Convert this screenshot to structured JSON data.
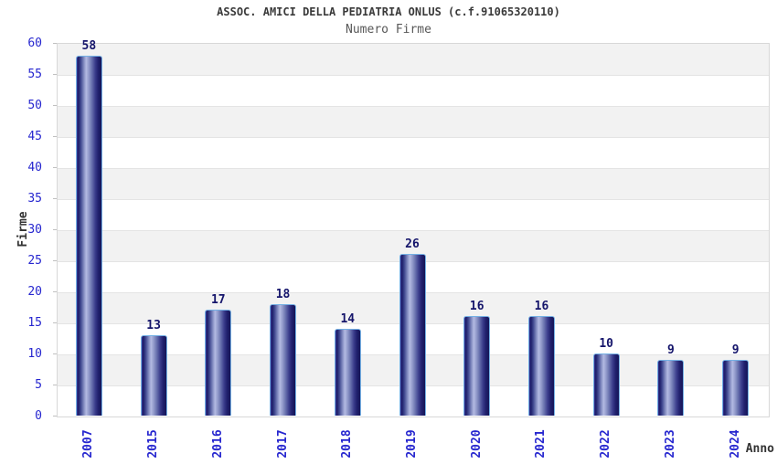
{
  "chart": {
    "title": "ASSOC. AMICI DELLA PEDIATRIA ONLUS (c.f.91065320110)",
    "subtitle": "Numero Firme",
    "ylabel": "Firme",
    "xlabel": "Anno"
  },
  "chart_data": {
    "type": "bar",
    "categories": [
      "2007",
      "2015",
      "2016",
      "2017",
      "2018",
      "2019",
      "2020",
      "2021",
      "2022",
      "2023",
      "2024"
    ],
    "values": [
      58,
      13,
      17,
      18,
      14,
      26,
      16,
      16,
      10,
      9,
      9
    ],
    "title": "ASSOC. AMICI DELLA PEDIATRIA ONLUS (c.f.91065320110)",
    "subtitle": "Numero Firme",
    "xlabel": "Anno",
    "ylabel": "Firme",
    "ylim": [
      0,
      60
    ],
    "ytick_step": 5,
    "ytick_labels": [
      "0",
      "5",
      "10",
      "15",
      "20",
      "25",
      "30",
      "35",
      "40",
      "45",
      "50",
      "55",
      "60"
    ],
    "grid": "alternating-horizontal-bands",
    "legend": "none",
    "bar_value_labels_shown": true,
    "colors": {
      "tick_text": "#2626cf",
      "value_text": "#15156b",
      "band_gray": "#f2f2f2",
      "gridline": "#e4e4e4",
      "plot_border": "#d8d8d8",
      "tickmark": "#c0c0c0",
      "bar_border": "#74b0e4",
      "bar_gradient": [
        "#3b3b9d",
        "#1b1b66",
        "#3f478f",
        "#8a93c6",
        "#b3bae2",
        "#959dcd",
        "#6b74b0",
        "#3d3f8e",
        "#22226f",
        "#141457"
      ],
      "title_text": "#3a3a3a",
      "subtitle_text": "#585858",
      "axis_label_text": "#333333",
      "background": "#ffffff"
    }
  }
}
